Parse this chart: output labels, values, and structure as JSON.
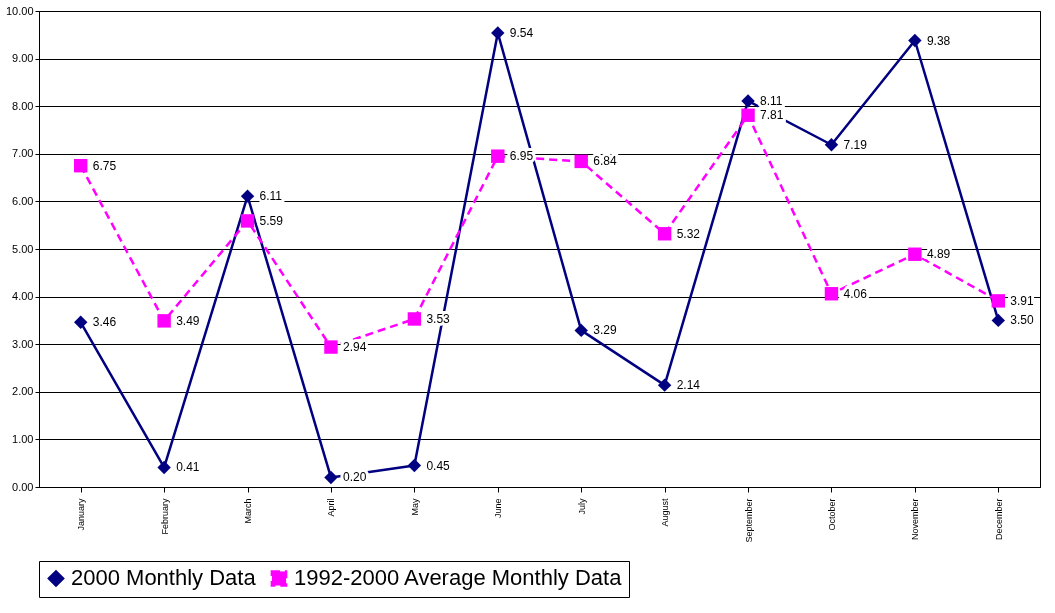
{
  "chart_data": {
    "type": "line",
    "categories": [
      "January",
      "February",
      "March",
      "April",
      "May",
      "June",
      "July",
      "August",
      "September",
      "October",
      "November",
      "December"
    ],
    "series": [
      {
        "name": "2000 Monthly Data",
        "color": "#000080",
        "marker": "diamond",
        "line_style": "solid",
        "values": [
          3.46,
          0.41,
          6.11,
          0.2,
          0.45,
          9.54,
          3.29,
          2.14,
          8.11,
          7.19,
          9.38,
          3.5
        ],
        "value_labels": [
          "3.46",
          "0.41",
          "6.11",
          "0.20",
          "0.45",
          "9.54",
          "3.29",
          "2.14",
          "8.11",
          "7.19",
          "9.38",
          "3.50"
        ]
      },
      {
        "name": "1992-2000 Average Monthly Data",
        "color": "#ff00ff",
        "marker": "square",
        "line_style": "dashed",
        "values": [
          6.75,
          3.49,
          5.59,
          2.94,
          3.53,
          6.95,
          6.84,
          5.32,
          7.81,
          4.06,
          4.89,
          3.91
        ],
        "value_labels": [
          "6.75",
          "3.49",
          "5.59",
          "2.94",
          "3.53",
          "6.95",
          "6.84",
          "5.32",
          "7.81",
          "4.06",
          "4.89",
          "3.91"
        ]
      }
    ],
    "ylim": [
      0,
      10
    ],
    "yticks": [
      {
        "value": 0,
        "label": "0.00"
      },
      {
        "value": 1,
        "label": "1.00"
      },
      {
        "value": 2,
        "label": "2.00"
      },
      {
        "value": 3,
        "label": "3.00"
      },
      {
        "value": 4,
        "label": "4.00"
      },
      {
        "value": 5,
        "label": "5.00"
      },
      {
        "value": 6,
        "label": "6.00"
      },
      {
        "value": 7,
        "label": "7.00"
      },
      {
        "value": 8,
        "label": "8.00"
      },
      {
        "value": 9,
        "label": "9.00"
      },
      {
        "value": 10,
        "label": "10.00"
      }
    ],
    "grid": "y",
    "legend": "bottom"
  }
}
